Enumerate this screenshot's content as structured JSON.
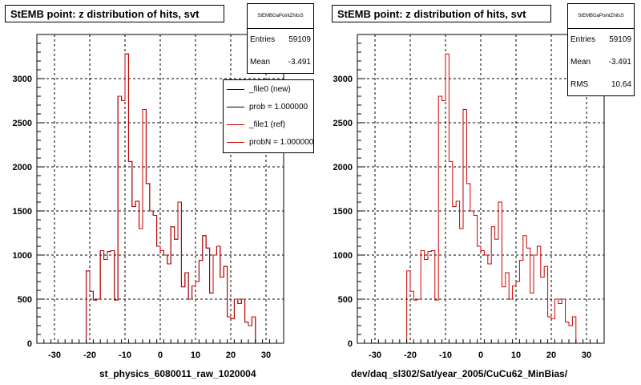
{
  "chart_data": [
    {
      "type": "histogram",
      "title": "StEMB point: z distribution of hits, svt",
      "xlabel": "st_physics_6080011_raw_1020004",
      "xlim": [
        -35,
        35
      ],
      "ylim": [
        0,
        3500
      ],
      "xticks": [
        -30,
        -20,
        -10,
        0,
        10,
        20,
        30
      ],
      "yticks": [
        0,
        500,
        1000,
        1500,
        2000,
        2500,
        3000
      ],
      "grid": true,
      "bin_edges_start": -35,
      "bin_width": 1,
      "series": [
        {
          "name": "_file0 (new)",
          "color": "#000000",
          "values": [
            0,
            0,
            0,
            0,
            0,
            0,
            0,
            0,
            0,
            0,
            0,
            0,
            0,
            0,
            820,
            590,
            490,
            500,
            1050,
            950,
            1040,
            1050,
            490,
            2800,
            2750,
            3280,
            2060,
            1550,
            1610,
            1300,
            2650,
            1810,
            1500,
            1450,
            1100,
            1050,
            1000,
            900,
            1320,
            1180,
            1600,
            640,
            800,
            500,
            650,
            700,
            940,
            1220,
            1080,
            570,
            1000,
            1100,
            750,
            870,
            300,
            280,
            500,
            450,
            500,
            240,
            200,
            300,
            0,
            0,
            0,
            0,
            0,
            0,
            0,
            0
          ]
        },
        {
          "name": "_file1 (ref)",
          "color": "#cc0000",
          "values": [
            0,
            0,
            0,
            0,
            0,
            0,
            0,
            0,
            0,
            0,
            0,
            0,
            0,
            0,
            820,
            590,
            490,
            500,
            1050,
            950,
            1040,
            1050,
            490,
            2800,
            2750,
            3280,
            2060,
            1550,
            1610,
            1300,
            2650,
            1810,
            1500,
            1450,
            1100,
            1050,
            1000,
            900,
            1320,
            1180,
            1600,
            640,
            800,
            500,
            650,
            700,
            940,
            1220,
            1080,
            570,
            1000,
            1100,
            750,
            870,
            300,
            280,
            500,
            450,
            500,
            240,
            200,
            300,
            0,
            0,
            0,
            0,
            0,
            0,
            0,
            0
          ]
        }
      ]
    },
    {
      "type": "histogram",
      "title": "StEMB point: z distribution of hits, svt",
      "xlabel": "dev/daq_sl302/Sat/year_2005/CuCu62_MinBias/",
      "xlim": [
        -35,
        35
      ],
      "ylim": [
        0,
        3500
      ],
      "xticks": [
        -30,
        -20,
        -10,
        0,
        10,
        20,
        30
      ],
      "yticks": [
        0,
        500,
        1000,
        1500,
        2000,
        2500,
        3000
      ],
      "grid": true,
      "bin_edges_start": -35,
      "bin_width": 1,
      "series": [
        {
          "name": "ref",
          "color": "#cc0000",
          "values": [
            0,
            0,
            0,
            0,
            0,
            0,
            0,
            0,
            0,
            0,
            0,
            0,
            0,
            0,
            820,
            590,
            490,
            500,
            1050,
            950,
            1040,
            1050,
            490,
            2800,
            2750,
            3280,
            2060,
            1550,
            1610,
            1300,
            2650,
            1810,
            1500,
            1450,
            1100,
            1050,
            1000,
            900,
            1320,
            1180,
            1600,
            640,
            800,
            500,
            650,
            700,
            940,
            1220,
            1080,
            570,
            1000,
            1100,
            750,
            870,
            300,
            280,
            500,
            450,
            500,
            240,
            200,
            300,
            0,
            0,
            0,
            0,
            0,
            0,
            0,
            0
          ]
        }
      ]
    }
  ],
  "left": {
    "title": "StEMB point: z distribution of hits, svt",
    "stats": {
      "name": "StEMBGaPointZhitsS",
      "entries_label": "Entries",
      "entries": "59109",
      "mean_label": "Mean",
      "mean": "-3.491"
    },
    "legend": [
      {
        "label": "_file0 (new)",
        "color": "#000000"
      },
      {
        "label": "prob = 1.000000",
        "color": "#000000"
      },
      {
        "label": "_file1 (ref)",
        "color": "#cc0000"
      },
      {
        "label": "probN = 1.000000",
        "color": "#cc0000"
      }
    ],
    "xlabel": "st_physics_6080011_raw_1020004"
  },
  "right": {
    "title": "StEMB point: z distribution of hits, svt",
    "stats": {
      "name": "StEMBGaPointZhitsS",
      "entries_label": "Entries",
      "entries": "59109",
      "mean_label": "Mean",
      "mean": "-3.491",
      "rms_label": "RMS",
      "rms": "10.64"
    },
    "xlabel": "dev/daq_sl302/Sat/year_2005/CuCu62_MinBias/"
  }
}
